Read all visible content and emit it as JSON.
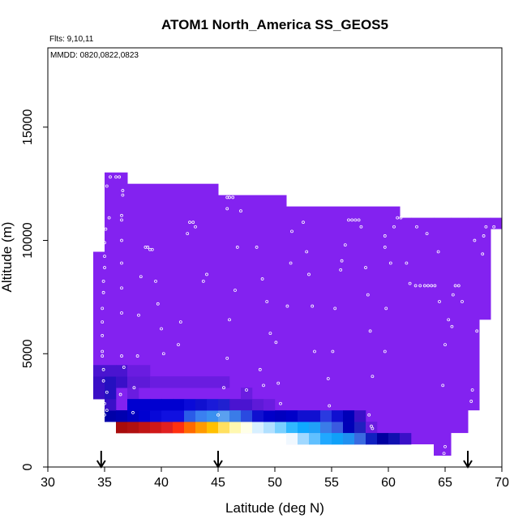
{
  "chart_data": {
    "type": "heatmap",
    "title": "ATOM1 North_America SS_GEOS5",
    "annotation_flights": "Flts: 9,10,11",
    "annotation_dates": "MMDD: 0820,0822,0823",
    "xlabel": "Latitude (deg N)",
    "ylabel": "Altitude (m)",
    "xlim": [
      30,
      70
    ],
    "ylim": [
      0,
      18500
    ],
    "xticks": [
      "30",
      "35",
      "40",
      "45",
      "50",
      "55",
      "60",
      "65",
      "70"
    ],
    "yticks": [
      "0",
      "5000",
      "10000",
      "15000"
    ],
    "background_color": "#8322f0",
    "envelope": [
      {
        "x0": 34.0,
        "x1": 35.0,
        "ymin": 3000,
        "ymax": 9500
      },
      {
        "x0": 35.0,
        "x1": 37.0,
        "ymin": 2000,
        "ymax": 13000
      },
      {
        "x0": 37.0,
        "x1": 45.0,
        "ymin": 1500,
        "ymax": 12500
      },
      {
        "x0": 45.0,
        "x1": 51.0,
        "ymin": 1500,
        "ymax": 12000
      },
      {
        "x0": 51.0,
        "x1": 61.0,
        "ymin": 1000,
        "ymax": 11500
      },
      {
        "x0": 61.0,
        "x1": 62.0,
        "ymin": 1000,
        "ymax": 11000
      },
      {
        "x0": 62.0,
        "x1": 64.0,
        "ymin": 1000,
        "ymax": 11000
      },
      {
        "x0": 64.0,
        "x1": 65.5,
        "ymin": 500,
        "ymax": 11000
      },
      {
        "x0": 65.5,
        "x1": 67.0,
        "ymin": 1500,
        "ymax": 11000
      },
      {
        "x0": 67.0,
        "x1": 68.0,
        "ymin": 2500,
        "ymax": 11000
      },
      {
        "x0": 68.0,
        "x1": 69.0,
        "ymin": 6500,
        "ymax": 11000
      },
      {
        "x0": 69.0,
        "x1": 70.0,
        "ymin": 10500,
        "ymax": 11000
      }
    ],
    "cell_width": 1,
    "cell_height": 500,
    "cells": [
      {
        "x": 34,
        "y": 3000,
        "color": "#3a0fc6"
      },
      {
        "x": 34,
        "y": 3500,
        "color": "#3a0fc6"
      },
      {
        "x": 34,
        "y": 4000,
        "color": "#4a14d0"
      },
      {
        "x": 35,
        "y": 2000,
        "color": "#0000a8"
      },
      {
        "x": 36,
        "y": 2000,
        "color": "#0000a8"
      },
      {
        "x": 35,
        "y": 2500,
        "color": "#3a10c8"
      },
      {
        "x": 35,
        "y": 3000,
        "color": "#2510c0"
      },
      {
        "x": 35,
        "y": 3500,
        "color": "#2510c0"
      },
      {
        "x": 36,
        "y": 3500,
        "color": "#3a10c8"
      },
      {
        "x": 35,
        "y": 4000,
        "color": "#4a14d0"
      },
      {
        "x": 36,
        "y": 4000,
        "color": "#4a14d0"
      },
      {
        "x": 37,
        "y": 3000,
        "color": "#6a1ce0"
      },
      {
        "x": 37,
        "y": 3500,
        "color": "#5e1ad8"
      },
      {
        "x": 38,
        "y": 3500,
        "color": "#5e1ad8"
      },
      {
        "x": 37,
        "y": 4000,
        "color": "#6a1ce0"
      },
      {
        "x": 38,
        "y": 4000,
        "color": "#6a1ce0"
      },
      {
        "x": 39,
        "y": 3500,
        "color": "#6a1ce0"
      },
      {
        "x": 40,
        "y": 3500,
        "color": "#6a1ce0"
      },
      {
        "x": 41,
        "y": 3500,
        "color": "#6a1ce0"
      },
      {
        "x": 42,
        "y": 3500,
        "color": "#6a1ce0"
      },
      {
        "x": 43,
        "y": 3500,
        "color": "#6a1ce0"
      },
      {
        "x": 44,
        "y": 3500,
        "color": "#6a1ce0"
      },
      {
        "x": 45,
        "y": 3500,
        "color": "#6a1ce0"
      },
      {
        "x": 46,
        "y": 2500,
        "color": "#4a14d0"
      },
      {
        "x": 47,
        "y": 2500,
        "color": "#4a14d0"
      },
      {
        "x": 48,
        "y": 2500,
        "color": "#5e1ad8"
      },
      {
        "x": 47,
        "y": 3000,
        "color": "#6a1ce0"
      },
      {
        "x": 36,
        "y": 1500,
        "color": "#a80c0c"
      },
      {
        "x": 37,
        "y": 1500,
        "color": "#b01010"
      },
      {
        "x": 38,
        "y": 1500,
        "color": "#c01414"
      },
      {
        "x": 39,
        "y": 1500,
        "color": "#d01818"
      },
      {
        "x": 40,
        "y": 1500,
        "color": "#e02020"
      },
      {
        "x": 41,
        "y": 1500,
        "color": "#ff3010"
      },
      {
        "x": 42,
        "y": 1500,
        "color": "#ff6a00"
      },
      {
        "x": 43,
        "y": 1500,
        "color": "#ff9a00"
      },
      {
        "x": 44,
        "y": 1500,
        "color": "#ffc000"
      },
      {
        "x": 45,
        "y": 1500,
        "color": "#ffe060"
      },
      {
        "x": 46,
        "y": 1500,
        "color": "#fff8b0"
      },
      {
        "x": 47,
        "y": 1500,
        "color": "#ffffe8"
      },
      {
        "x": 48,
        "y": 1500,
        "color": "#d8f0ff"
      },
      {
        "x": 49,
        "y": 1500,
        "color": "#b0e0ff"
      },
      {
        "x": 50,
        "y": 1500,
        "color": "#78d0ff"
      },
      {
        "x": 51,
        "y": 1500,
        "color": "#30b8ff"
      },
      {
        "x": 52,
        "y": 1500,
        "color": "#10a8ff"
      },
      {
        "x": 53,
        "y": 1500,
        "color": "#20a0f8"
      },
      {
        "x": 54,
        "y": 1500,
        "color": "#3a7ce8"
      },
      {
        "x": 55,
        "y": 1500,
        "color": "#3a5ae0"
      },
      {
        "x": 56,
        "y": 1500,
        "color": "#0000b8"
      },
      {
        "x": 57,
        "y": 1500,
        "color": "#2020c0"
      },
      {
        "x": 58,
        "y": 1500,
        "color": "#6a1ce0"
      },
      {
        "x": 51,
        "y": 1000,
        "color": "#f0f8ff"
      },
      {
        "x": 52,
        "y": 1000,
        "color": "#a0d8ff"
      },
      {
        "x": 53,
        "y": 1000,
        "color": "#60c0ff"
      },
      {
        "x": 54,
        "y": 1000,
        "color": "#20a8ff"
      },
      {
        "x": 55,
        "y": 1000,
        "color": "#10a0f8"
      },
      {
        "x": 56,
        "y": 1000,
        "color": "#2090f0"
      },
      {
        "x": 57,
        "y": 1000,
        "color": "#3a6ae0"
      },
      {
        "x": 58,
        "y": 1000,
        "color": "#1020c0"
      },
      {
        "x": 59,
        "y": 1000,
        "color": "#0000a0"
      },
      {
        "x": 60,
        "y": 1000,
        "color": "#1010b0"
      },
      {
        "x": 61,
        "y": 1000,
        "color": "#3a10c8"
      },
      {
        "x": 36,
        "y": 2000,
        "color": "#0000b0"
      },
      {
        "x": 37,
        "y": 2000,
        "color": "#0000c0"
      },
      {
        "x": 38,
        "y": 2000,
        "color": "#0000d0"
      },
      {
        "x": 39,
        "y": 2000,
        "color": "#0808d8"
      },
      {
        "x": 40,
        "y": 2000,
        "color": "#1010e0"
      },
      {
        "x": 41,
        "y": 2000,
        "color": "#1010e0"
      },
      {
        "x": 42,
        "y": 2000,
        "color": "#2a5ce8"
      },
      {
        "x": 43,
        "y": 2000,
        "color": "#3a80f0"
      },
      {
        "x": 44,
        "y": 2000,
        "color": "#3a90f0"
      },
      {
        "x": 45,
        "y": 2000,
        "color": "#5aa0f0"
      },
      {
        "x": 46,
        "y": 2000,
        "color": "#3a7ce8"
      },
      {
        "x": 47,
        "y": 2000,
        "color": "#2a4ae0"
      },
      {
        "x": 48,
        "y": 2000,
        "color": "#1010d0"
      },
      {
        "x": 49,
        "y": 2000,
        "color": "#0000c8"
      },
      {
        "x": 50,
        "y": 2000,
        "color": "#0000c0"
      },
      {
        "x": 51,
        "y": 2000,
        "color": "#0000c8"
      },
      {
        "x": 52,
        "y": 2000,
        "color": "#1010d0"
      },
      {
        "x": 53,
        "y": 2000,
        "color": "#1010d0"
      },
      {
        "x": 54,
        "y": 2000,
        "color": "#2a3ae0"
      },
      {
        "x": 55,
        "y": 2000,
        "color": "#1010d0"
      },
      {
        "x": 56,
        "y": 2000,
        "color": "#0000b8"
      },
      {
        "x": 57,
        "y": 2000,
        "color": "#3a10c8"
      },
      {
        "x": 37,
        "y": 2500,
        "color": "#0000d0"
      },
      {
        "x": 38,
        "y": 2500,
        "color": "#0000d0"
      },
      {
        "x": 39,
        "y": 2500,
        "color": "#0000d0"
      },
      {
        "x": 40,
        "y": 2500,
        "color": "#0000d0"
      },
      {
        "x": 41,
        "y": 2500,
        "color": "#0000d0"
      },
      {
        "x": 42,
        "y": 2500,
        "color": "#0a0ad8"
      },
      {
        "x": 43,
        "y": 2500,
        "color": "#1010d0"
      },
      {
        "x": 44,
        "y": 2500,
        "color": "#1a1ad8"
      },
      {
        "x": 45,
        "y": 2500,
        "color": "#2020d0"
      },
      {
        "x": 49,
        "y": 2500,
        "color": "#6a1ce0"
      }
    ],
    "points": [
      {
        "x": 35.5,
        "y": 12800
      },
      {
        "x": 36.0,
        "y": 12800
      },
      {
        "x": 36.3,
        "y": 12800
      },
      {
        "x": 35.2,
        "y": 12400
      },
      {
        "x": 36.6,
        "y": 12200
      },
      {
        "x": 36.6,
        "y": 12000
      },
      {
        "x": 35.4,
        "y": 11000
      },
      {
        "x": 35.1,
        "y": 10500
      },
      {
        "x": 36.5,
        "y": 11100
      },
      {
        "x": 36.5,
        "y": 10900
      },
      {
        "x": 36.5,
        "y": 10000
      },
      {
        "x": 38.6,
        "y": 9700
      },
      {
        "x": 38.8,
        "y": 9700
      },
      {
        "x": 39.0,
        "y": 9600
      },
      {
        "x": 39.2,
        "y": 9600
      },
      {
        "x": 35.0,
        "y": 9900
      },
      {
        "x": 35.0,
        "y": 9300
      },
      {
        "x": 35.0,
        "y": 8800
      },
      {
        "x": 36.5,
        "y": 9000
      },
      {
        "x": 34.9,
        "y": 8200
      },
      {
        "x": 34.9,
        "y": 7700
      },
      {
        "x": 36.5,
        "y": 7900
      },
      {
        "x": 38.2,
        "y": 8400
      },
      {
        "x": 39.5,
        "y": 8200
      },
      {
        "x": 34.8,
        "y": 7000
      },
      {
        "x": 34.8,
        "y": 6400
      },
      {
        "x": 36.5,
        "y": 6800
      },
      {
        "x": 38.0,
        "y": 6700
      },
      {
        "x": 39.7,
        "y": 7200
      },
      {
        "x": 40.0,
        "y": 6100
      },
      {
        "x": 41.7,
        "y": 6400
      },
      {
        "x": 34.8,
        "y": 5800
      },
      {
        "x": 34.8,
        "y": 5100
      },
      {
        "x": 34.8,
        "y": 4900
      },
      {
        "x": 36.5,
        "y": 4900
      },
      {
        "x": 37.9,
        "y": 4900
      },
      {
        "x": 40.2,
        "y": 5000
      },
      {
        "x": 41.5,
        "y": 5400
      },
      {
        "x": 34.9,
        "y": 4300
      },
      {
        "x": 34.9,
        "y": 3800
      },
      {
        "x": 36.7,
        "y": 4400
      },
      {
        "x": 35.2,
        "y": 3300
      },
      {
        "x": 35.0,
        "y": 2800
      },
      {
        "x": 35.2,
        "y": 2500
      },
      {
        "x": 35.0,
        "y": 2300
      },
      {
        "x": 36.4,
        "y": 3200
      },
      {
        "x": 37.6,
        "y": 3500
      },
      {
        "x": 37.5,
        "y": 2400
      },
      {
        "x": 42.5,
        "y": 10800
      },
      {
        "x": 42.8,
        "y": 10800
      },
      {
        "x": 43.0,
        "y": 10600
      },
      {
        "x": 42.3,
        "y": 10300
      },
      {
        "x": 44.0,
        "y": 8500
      },
      {
        "x": 43.7,
        "y": 8200
      },
      {
        "x": 45.8,
        "y": 11900
      },
      {
        "x": 46.0,
        "y": 11900
      },
      {
        "x": 46.3,
        "y": 11900
      },
      {
        "x": 45.8,
        "y": 11400
      },
      {
        "x": 47.0,
        "y": 11300
      },
      {
        "x": 46.7,
        "y": 9700
      },
      {
        "x": 48.4,
        "y": 9700
      },
      {
        "x": 46.5,
        "y": 7800
      },
      {
        "x": 48.9,
        "y": 8300
      },
      {
        "x": 49.3,
        "y": 7300
      },
      {
        "x": 46.0,
        "y": 6500
      },
      {
        "x": 49.6,
        "y": 5900
      },
      {
        "x": 50.1,
        "y": 5500
      },
      {
        "x": 45.8,
        "y": 4800
      },
      {
        "x": 48.7,
        "y": 4300
      },
      {
        "x": 45.5,
        "y": 3500
      },
      {
        "x": 47.5,
        "y": 3400
      },
      {
        "x": 49.0,
        "y": 3600
      },
      {
        "x": 50.3,
        "y": 3700
      },
      {
        "x": 50.5,
        "y": 2800
      },
      {
        "x": 45.0,
        "y": 2300
      },
      {
        "x": 51.8,
        "y": 11700
      },
      {
        "x": 52.0,
        "y": 11700
      },
      {
        "x": 52.5,
        "y": 10800
      },
      {
        "x": 51.5,
        "y": 10400
      },
      {
        "x": 52.8,
        "y": 9500
      },
      {
        "x": 51.4,
        "y": 9000
      },
      {
        "x": 53.0,
        "y": 8500
      },
      {
        "x": 51.1,
        "y": 7100
      },
      {
        "x": 53.3,
        "y": 7100
      },
      {
        "x": 53.5,
        "y": 5100
      },
      {
        "x": 55.1,
        "y": 5100
      },
      {
        "x": 54.7,
        "y": 3900
      },
      {
        "x": 54.8,
        "y": 2700
      },
      {
        "x": 55.3,
        "y": 7000
      },
      {
        "x": 55.9,
        "y": 9100
      },
      {
        "x": 55.8,
        "y": 8700
      },
      {
        "x": 56.2,
        "y": 9800
      },
      {
        "x": 56.5,
        "y": 10900
      },
      {
        "x": 56.8,
        "y": 10900
      },
      {
        "x": 57.1,
        "y": 10900
      },
      {
        "x": 57.4,
        "y": 10900
      },
      {
        "x": 57.6,
        "y": 10600
      },
      {
        "x": 58.0,
        "y": 8800
      },
      {
        "x": 58.2,
        "y": 7600
      },
      {
        "x": 58.4,
        "y": 6000
      },
      {
        "x": 58.6,
        "y": 4000
      },
      {
        "x": 58.3,
        "y": 2300
      },
      {
        "x": 59.7,
        "y": 10200
      },
      {
        "x": 59.7,
        "y": 9700
      },
      {
        "x": 59.8,
        "y": 7000
      },
      {
        "x": 59.7,
        "y": 5100
      },
      {
        "x": 60.2,
        "y": 9000
      },
      {
        "x": 60.5,
        "y": 10600
      },
      {
        "x": 60.8,
        "y": 11000
      },
      {
        "x": 61.1,
        "y": 11000
      },
      {
        "x": 61.6,
        "y": 9000
      },
      {
        "x": 61.9,
        "y": 8100
      },
      {
        "x": 62.4,
        "y": 8000
      },
      {
        "x": 62.8,
        "y": 8000
      },
      {
        "x": 63.2,
        "y": 8000
      },
      {
        "x": 63.5,
        "y": 8000
      },
      {
        "x": 63.8,
        "y": 8000
      },
      {
        "x": 64.1,
        "y": 8000
      },
      {
        "x": 62.5,
        "y": 10600
      },
      {
        "x": 63.4,
        "y": 10300
      },
      {
        "x": 64.4,
        "y": 9500
      },
      {
        "x": 64.5,
        "y": 7300
      },
      {
        "x": 64.8,
        "y": 3600
      },
      {
        "x": 65.0,
        "y": 5400
      },
      {
        "x": 65.3,
        "y": 6500
      },
      {
        "x": 65.6,
        "y": 6200
      },
      {
        "x": 65.7,
        "y": 7600
      },
      {
        "x": 65.9,
        "y": 8000
      },
      {
        "x": 66.2,
        "y": 8000
      },
      {
        "x": 66.5,
        "y": 7300
      },
      {
        "x": 67.3,
        "y": 2900
      },
      {
        "x": 67.4,
        "y": 3400
      },
      {
        "x": 67.6,
        "y": 10000
      },
      {
        "x": 67.8,
        "y": 6000
      },
      {
        "x": 68.3,
        "y": 9400
      },
      {
        "x": 68.4,
        "y": 10200
      },
      {
        "x": 68.6,
        "y": 10600
      },
      {
        "x": 69.3,
        "y": 10600
      },
      {
        "x": 65.0,
        "y": 900
      },
      {
        "x": 64.9,
        "y": 600
      },
      {
        "x": 58.5,
        "y": 1800
      },
      {
        "x": 58.6,
        "y": 1700
      }
    ],
    "point_color": "#ffffff",
    "arrows_latitude": [
      34.7,
      45.0,
      67.0
    ]
  }
}
